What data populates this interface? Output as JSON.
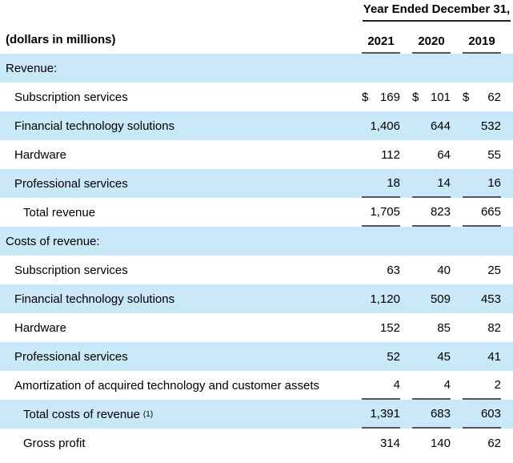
{
  "table": {
    "period_header": "Year Ended December 31,",
    "units_label": "(dollars in millions)",
    "currency_symbol": "$",
    "columns": [
      "2021",
      "2020",
      "2019"
    ],
    "rows": [
      {
        "label": "Revenue:",
        "type": "section",
        "values": [
          "",
          "",
          ""
        ]
      },
      {
        "label": "Subscription services",
        "type": "item",
        "dollar": true,
        "values": [
          "169",
          "101",
          "62"
        ]
      },
      {
        "label": "Financial technology solutions",
        "type": "item",
        "values": [
          "1,406",
          "644",
          "532"
        ]
      },
      {
        "label": "Hardware",
        "type": "item",
        "values": [
          "112",
          "64",
          "55"
        ]
      },
      {
        "label": "Professional services",
        "type": "item",
        "underline": true,
        "values": [
          "18",
          "14",
          "16"
        ]
      },
      {
        "label": "Total revenue",
        "type": "total",
        "underline": true,
        "values": [
          "1,705",
          "823",
          "665"
        ]
      },
      {
        "label": "Costs of revenue:",
        "type": "section",
        "values": [
          "",
          "",
          ""
        ]
      },
      {
        "label": "Subscription services",
        "type": "item",
        "values": [
          "63",
          "40",
          "25"
        ]
      },
      {
        "label": "Financial technology solutions",
        "type": "item",
        "values": [
          "1,120",
          "509",
          "453"
        ]
      },
      {
        "label": "Hardware",
        "type": "item",
        "values": [
          "152",
          "85",
          "82"
        ]
      },
      {
        "label": "Professional services",
        "type": "item",
        "values": [
          "52",
          "45",
          "41"
        ]
      },
      {
        "label": "Amortization of acquired technology and customer assets",
        "type": "item",
        "underline": true,
        "values": [
          "4",
          "4",
          "2"
        ]
      },
      {
        "label": "Total costs of revenue",
        "footnote": "(1)",
        "type": "total",
        "underline": true,
        "values": [
          "1,391",
          "683",
          "603"
        ]
      },
      {
        "label": "Gross profit",
        "type": "total",
        "values": [
          "314",
          "140",
          "62"
        ]
      }
    ],
    "colors": {
      "row_highlight": "#C9E8F8",
      "rule_dark": "#54565A",
      "rule_black": "#221F20",
      "text": "#000000"
    }
  }
}
